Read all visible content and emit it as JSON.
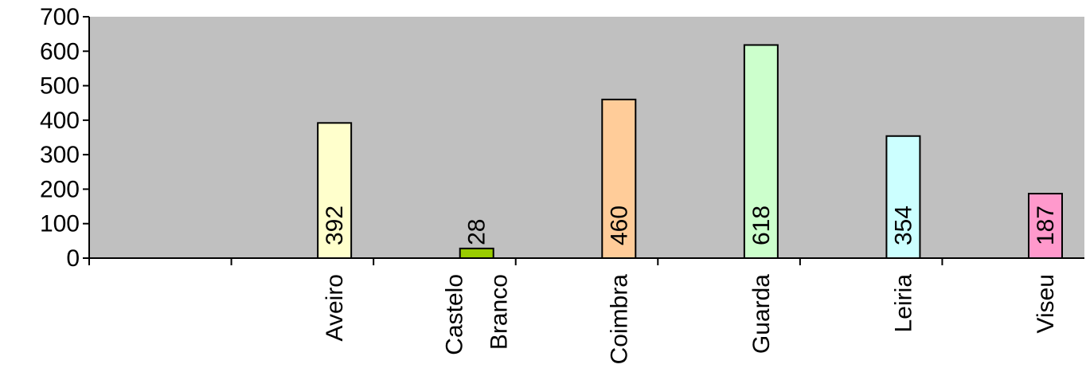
{
  "chart_data": {
    "type": "bar",
    "title": "",
    "xlabel": "",
    "ylabel": "",
    "ylim": [
      0,
      700
    ],
    "yticks": [
      0,
      100,
      200,
      300,
      400,
      500,
      600,
      700
    ],
    "grid": false,
    "legend": "none",
    "plot_background": "#c0c0c0",
    "categories": [
      {
        "label_lines": [
          ""
        ],
        "value": null,
        "color": null,
        "label": ""
      },
      {
        "label_lines": [
          "Aveiro"
        ],
        "value": 392,
        "color": "#ffffcc",
        "label": "392"
      },
      {
        "label_lines": [
          "Castelo",
          "Branco"
        ],
        "value": 28,
        "color": "#99cc00",
        "label": "28"
      },
      {
        "label_lines": [
          "Coimbra"
        ],
        "value": 460,
        "color": "#ffcc99",
        "label": "460"
      },
      {
        "label_lines": [
          "Guarda"
        ],
        "value": 618,
        "color": "#ccffcc",
        "label": "618"
      },
      {
        "label_lines": [
          "Leiria"
        ],
        "value": 354,
        "color": "#ccffff",
        "label": "354"
      },
      {
        "label_lines": [
          "Viseu"
        ],
        "value": 187,
        "color": "#ff99cc",
        "label": "187"
      }
    ]
  }
}
